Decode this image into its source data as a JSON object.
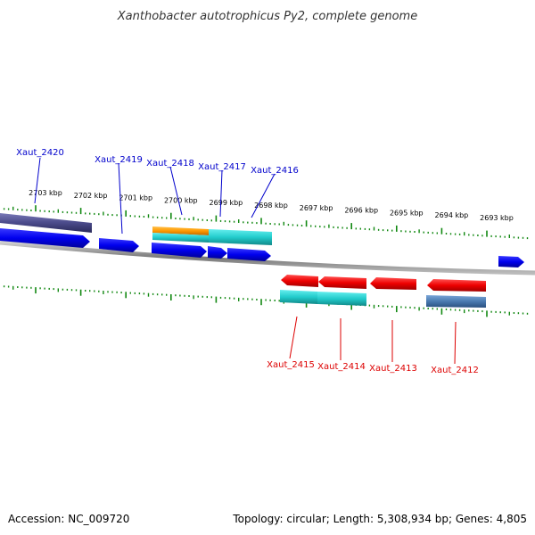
{
  "title": "Xanthobacter autotrophicus Py2, complete genome",
  "footer": {
    "accession": "Accession: NC_009720",
    "stats": "Topology: circular; Length: 5,308,934 bp; Genes: 4,805"
  },
  "kbp_labels": [
    "2703 kbp",
    "2702 kbp",
    "2701 kbp",
    "2700 kbp",
    "2699 kbp",
    "2698 kbp",
    "2697 kbp",
    "2696 kbp",
    "2695 kbp",
    "2694 kbp",
    "2693 kbp"
  ],
  "genes": [
    {
      "id": "Xaut_2420",
      "strand": "plus",
      "color": "#0000cc"
    },
    {
      "id": "Xaut_2419",
      "strand": "plus",
      "color": "#0000cc"
    },
    {
      "id": "Xaut_2418",
      "strand": "plus",
      "color": "#0000cc"
    },
    {
      "id": "Xaut_2417",
      "strand": "plus",
      "color": "#0000cc"
    },
    {
      "id": "Xaut_2416",
      "strand": "plus",
      "color": "#0000cc"
    },
    {
      "id": "Xaut_2415",
      "strand": "minus",
      "color": "#dd0000"
    },
    {
      "id": "Xaut_2414",
      "strand": "minus",
      "color": "#dd0000"
    },
    {
      "id": "Xaut_2413",
      "strand": "minus",
      "color": "#dd0000"
    },
    {
      "id": "Xaut_2412",
      "strand": "minus",
      "color": "#dd0000"
    }
  ],
  "colors": {
    "plus_gene": "#0000ee",
    "minus_gene": "#ee0000",
    "ruler_tick": "#118811",
    "backbone": "#888888",
    "cds_dark": "#4a4a8a",
    "cds_orange": "#ff9900",
    "cds_cyan": "#22cccc",
    "cds_steel": "#4a7ab0"
  }
}
